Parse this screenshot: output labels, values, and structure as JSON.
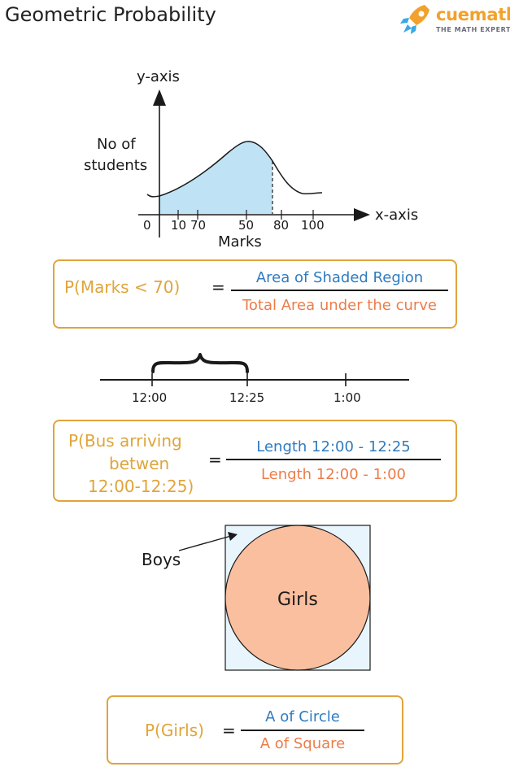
{
  "header": {
    "title": "Geometric Probability",
    "logo": {
      "brand": "cuemath",
      "tagline": "THE MATH EXPERT",
      "icon": "rocket-icon",
      "brand_color": "#f2a12c"
    }
  },
  "curve_chart": {
    "y_axis_label": "y-axis",
    "x_axis_label": "x-axis",
    "y_label_line1": "No of",
    "y_label_line2": "students",
    "x_title": "Marks",
    "ticks": [
      "0",
      "10",
      "70",
      "50",
      "80",
      "100"
    ],
    "shade_color": "#bfe3f5"
  },
  "formula1": {
    "lhs": "P(Marks < 70)",
    "equals": "=",
    "numerator": "Area of Shaded Region",
    "denominator": "Total Area under the curve"
  },
  "timeline": {
    "labels": [
      "12:00",
      "12:25",
      "1:00"
    ]
  },
  "formula2": {
    "lhs_line1": "P(Bus arriving",
    "lhs_line2": "betwen",
    "lhs_line3": "12:00-12:25)",
    "equals": "=",
    "numerator": "Length 12:00 - 12:25",
    "denominator": "Length 12:00 - 1:00"
  },
  "square_diagram": {
    "boys_label": "Boys",
    "girls_label": "Girls",
    "square_color": "#e9f5fd",
    "circle_color": "#f9bf9f"
  },
  "formula3": {
    "lhs": "P(Girls)",
    "equals": "=",
    "numerator": "A of Circle",
    "denominator": "A of Square"
  },
  "colors": {
    "accent": "#e0a43a",
    "numerator": "#2f7bbf",
    "denominator": "#ec7c4a"
  }
}
